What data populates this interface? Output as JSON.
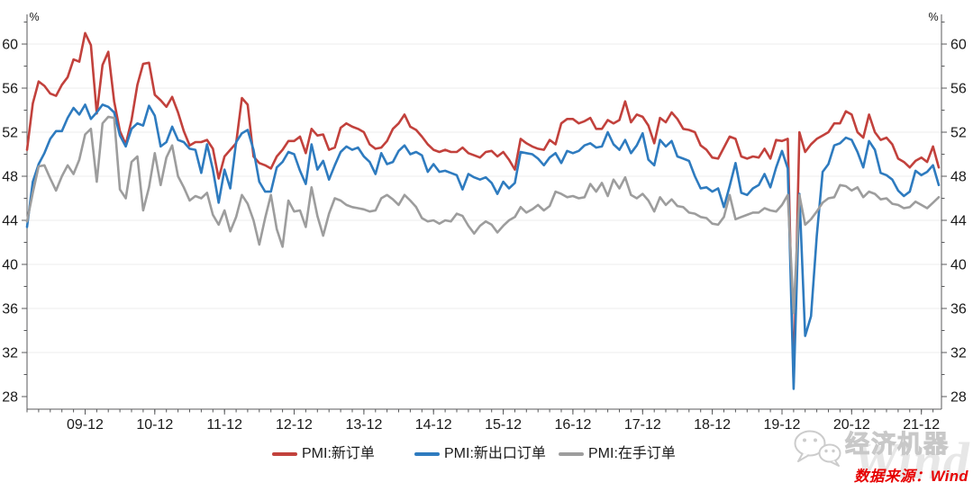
{
  "chart_data": {
    "type": "line",
    "title": "",
    "unit": "%",
    "grid": "horizontal",
    "legend_position": "bottom",
    "x_start": "2009-02",
    "x_end": "2022-03",
    "x_tick_labels": [
      "09-12",
      "10-12",
      "11-12",
      "12-12",
      "13-12",
      "14-12",
      "15-12",
      "16-12",
      "17-12",
      "18-12",
      "19-12",
      "20-12",
      "21-12"
    ],
    "x_tick_indices": [
      10,
      22,
      34,
      46,
      58,
      70,
      82,
      94,
      106,
      118,
      130,
      142,
      154
    ],
    "y_ticks": [
      28,
      32,
      36,
      40,
      44,
      48,
      52,
      56,
      60
    ],
    "ylim": [
      28,
      62
    ],
    "series": [
      {
        "name": "PMI:新订单",
        "color": "#C2413C",
        "values": [
          50.4,
          54.6,
          56.6,
          56.2,
          55.5,
          55.3,
          56.3,
          57.0,
          58.6,
          58.4,
          61.0,
          59.9,
          53.7,
          58.1,
          59.3,
          54.8,
          52.1,
          50.9,
          53.1,
          56.3,
          58.2,
          58.3,
          55.4,
          54.9,
          54.3,
          55.2,
          53.8,
          52.1,
          50.8,
          51.1,
          51.1,
          51.3,
          50.5,
          47.8,
          49.8,
          50.4,
          51.0,
          55.1,
          54.5,
          49.8,
          49.2,
          49.0,
          48.7,
          49.8,
          50.4,
          51.2,
          51.2,
          51.6,
          50.1,
          52.3,
          51.7,
          51.8,
          50.4,
          50.6,
          52.4,
          52.8,
          52.5,
          52.3,
          52.0,
          50.9,
          50.5,
          50.6,
          51.2,
          52.3,
          52.8,
          53.6,
          52.5,
          52.2,
          51.6,
          50.9,
          50.4,
          50.2,
          50.4,
          50.2,
          50.2,
          50.6,
          50.1,
          49.9,
          49.7,
          50.2,
          50.3,
          49.8,
          50.2,
          49.5,
          48.6,
          51.4,
          51.0,
          50.7,
          50.5,
          50.4,
          51.3,
          50.9,
          52.8,
          53.2,
          53.2,
          52.8,
          53.0,
          53.3,
          52.3,
          52.3,
          53.1,
          52.8,
          53.1,
          54.8,
          52.9,
          53.6,
          53.4,
          52.6,
          51.0,
          53.3,
          52.9,
          53.8,
          53.2,
          52.3,
          52.2,
          52.0,
          50.8,
          50.4,
          49.7,
          49.6,
          50.6,
          51.6,
          51.4,
          49.8,
          49.6,
          49.8,
          49.7,
          50.5,
          49.6,
          51.3,
          51.2,
          51.4,
          29.3,
          52.0,
          50.2,
          50.9,
          51.4,
          51.7,
          52.0,
          52.8,
          52.8,
          53.9,
          53.6,
          52.0,
          51.5,
          53.6,
          52.0,
          51.3,
          51.5,
          50.9,
          49.6,
          49.3,
          48.8,
          49.4,
          49.7,
          49.3,
          50.7,
          48.8
        ]
      },
      {
        "name": "PMI:新出口订单",
        "color": "#2E7BBF",
        "values": [
          43.4,
          47.5,
          49.1,
          50.1,
          51.4,
          52.1,
          52.1,
          53.3,
          54.2,
          53.6,
          54.5,
          53.2,
          53.8,
          54.5,
          54.3,
          53.8,
          51.7,
          50.7,
          52.3,
          52.8,
          52.6,
          54.4,
          53.5,
          50.7,
          51.1,
          52.5,
          51.3,
          51.1,
          50.5,
          50.4,
          48.3,
          50.9,
          48.6,
          45.6,
          48.6,
          46.9,
          51.1,
          51.9,
          52.2,
          50.4,
          47.5,
          46.6,
          46.6,
          48.8,
          49.3,
          50.2,
          50.0,
          48.5,
          47.3,
          50.9,
          48.6,
          49.4,
          47.7,
          49.0,
          50.2,
          50.7,
          50.4,
          50.6,
          49.8,
          49.3,
          48.2,
          50.1,
          49.1,
          49.3,
          50.3,
          50.8,
          50.0,
          50.2,
          49.9,
          48.4,
          49.1,
          48.4,
          48.5,
          48.3,
          48.1,
          46.8,
          48.2,
          47.9,
          47.7,
          47.9,
          47.4,
          46.4,
          47.5,
          46.9,
          47.4,
          50.2,
          50.1,
          50.0,
          49.6,
          49.0,
          49.7,
          50.1,
          49.2,
          50.3,
          50.1,
          50.3,
          50.8,
          51.0,
          50.6,
          50.7,
          52.0,
          50.9,
          50.4,
          51.3,
          50.1,
          50.8,
          51.9,
          49.5,
          49.0,
          51.3,
          50.7,
          51.2,
          49.8,
          49.6,
          49.4,
          48.0,
          46.9,
          47.0,
          46.6,
          46.9,
          45.2,
          47.1,
          49.2,
          46.5,
          46.3,
          46.9,
          47.2,
          48.2,
          47.0,
          48.8,
          50.3,
          48.7,
          28.7,
          46.4,
          33.5,
          35.3,
          42.6,
          48.4,
          49.1,
          50.8,
          51.0,
          51.5,
          51.3,
          50.2,
          48.8,
          51.2,
          50.4,
          48.3,
          48.1,
          47.7,
          46.7,
          46.2,
          46.6,
          48.5,
          48.1,
          48.4,
          49.0,
          47.2
        ]
      },
      {
        "name": "PMI:在手订单",
        "color": "#9D9D9D",
        "values": [
          43.9,
          46.5,
          48.9,
          49.0,
          47.8,
          46.7,
          48.0,
          49.0,
          48.2,
          49.5,
          51.8,
          52.3,
          47.5,
          52.8,
          53.4,
          53.3,
          46.8,
          46.0,
          49.3,
          49.8,
          44.9,
          47.0,
          50.1,
          47.2,
          49.7,
          50.8,
          48.0,
          47.0,
          45.8,
          46.2,
          46.0,
          46.5,
          44.5,
          43.6,
          44.9,
          43.0,
          44.3,
          46.3,
          45.5,
          44.0,
          41.8,
          44.2,
          46.3,
          43.2,
          41.6,
          45.8,
          44.8,
          44.9,
          43.4,
          47.0,
          44.4,
          42.6,
          44.6,
          46.0,
          45.8,
          45.4,
          45.2,
          45.1,
          45.0,
          44.8,
          44.9,
          46.0,
          46.3,
          45.9,
          45.4,
          46.3,
          45.8,
          45.2,
          44.2,
          43.9,
          44.0,
          43.7,
          44.0,
          43.9,
          44.6,
          44.4,
          43.5,
          42.8,
          43.5,
          43.9,
          43.6,
          42.9,
          43.5,
          44.0,
          44.3,
          45.2,
          44.7,
          45.0,
          45.4,
          44.9,
          45.3,
          46.6,
          46.4,
          46.1,
          46.2,
          46.0,
          46.1,
          47.3,
          46.6,
          47.4,
          46.2,
          47.7,
          46.9,
          47.9,
          46.3,
          46.0,
          46.4,
          45.8,
          44.8,
          46.1,
          45.4,
          45.9,
          45.3,
          45.2,
          44.7,
          44.6,
          44.3,
          44.2,
          43.7,
          43.6,
          44.3,
          46.3,
          44.1,
          44.3,
          44.5,
          44.7,
          44.7,
          45.1,
          44.9,
          44.8,
          45.4,
          46.3,
          35.6,
          46.3,
          43.6,
          44.1,
          44.8,
          45.6,
          46.0,
          46.1,
          47.2,
          47.1,
          46.7,
          47.0,
          46.1,
          46.6,
          46.4,
          45.9,
          46.0,
          45.5,
          45.4,
          45.1,
          45.2,
          45.7,
          45.4,
          45.1,
          45.6,
          46.1
        ]
      }
    ]
  },
  "footer": {
    "source_label": "数据来源：Wind"
  },
  "watermark": {
    "brand": "经济机器",
    "wind_text": "Wind"
  }
}
